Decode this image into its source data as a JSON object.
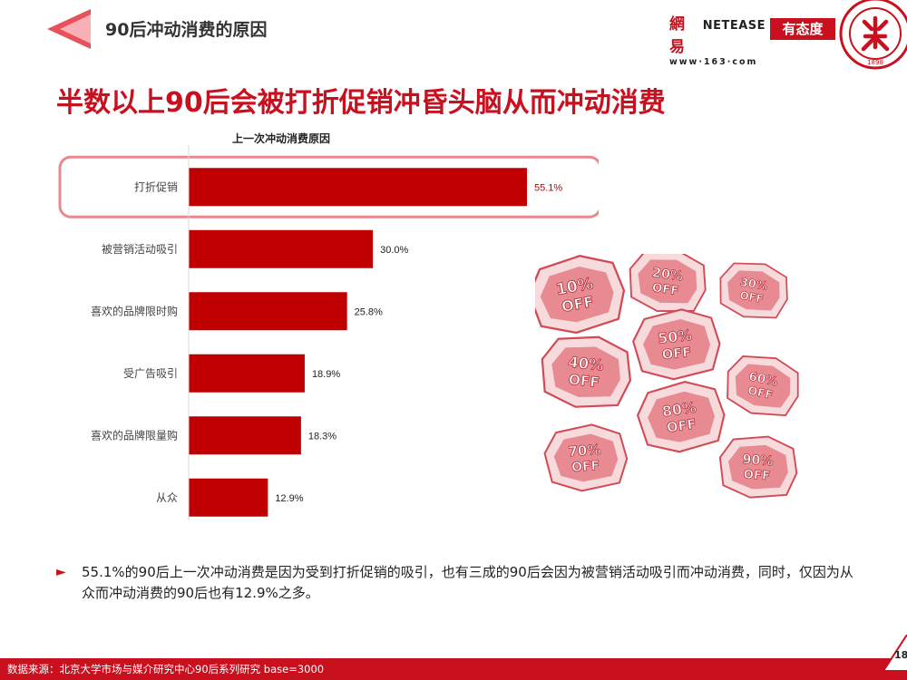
{
  "header": {
    "title": "90后冲动消费的原因",
    "netease_cn": "網易",
    "netease_en": "NETEASE",
    "netease_url": "www·163·com",
    "youtaidu": "有态度",
    "seal_year": "1898"
  },
  "headline": "半数以上90后会被打折促销冲昏头脑从而冲动消费",
  "chart_data": {
    "type": "bar",
    "orientation": "horizontal",
    "title": "上一次冲动消费原因",
    "categories": [
      "打折促销",
      "被营销活动吸引",
      "喜欢的品牌限时购",
      "受广告吸引",
      "喜欢的品牌限量购",
      "从众"
    ],
    "values": [
      55.1,
      30.0,
      25.8,
      18.9,
      18.3,
      12.9
    ],
    "value_labels": [
      "55.1%",
      "30.0%",
      "25.8%",
      "18.9%",
      "18.3%",
      "12.9%"
    ],
    "unit": "%",
    "bar_color": "#c00000",
    "highlight_category": "打折促销",
    "highlight_color": "#e8888f",
    "highlight_label_color": "#c00000",
    "grid": false,
    "legend": "none"
  },
  "promo_tags": [
    "10% OFF",
    "20% OFF",
    "30% OFF",
    "50% OFF",
    "40% OFF",
    "60% OFF",
    "80% OFF",
    "70% OFF",
    "90% OFF"
  ],
  "bullet": {
    "icon": "triangle-right-icon",
    "text": "55.1%的90后上一次冲动消费是因为受到打折促销的吸引，也有三成的90后会因为被营销活动吸引而冲动消费，同时，仅因为从众而冲动消费的90后也有12.9%之多。"
  },
  "footer": {
    "source": "数据来源：北京大学市场与媒介研究中心90后系列研究 base=3000",
    "page": "18"
  },
  "colors": {
    "brand_red": "#c8101e",
    "bar_red": "#c00000",
    "header_triangle": "#e8505a"
  }
}
